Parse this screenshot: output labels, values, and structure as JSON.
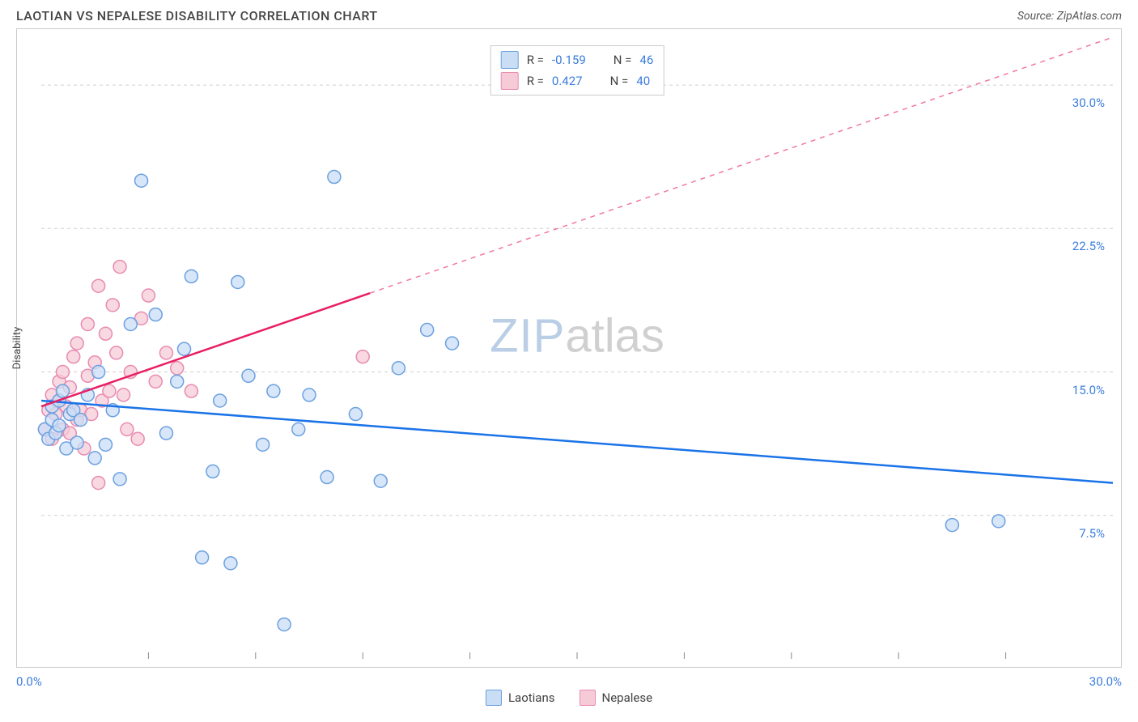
{
  "title": "LAOTIAN VS NEPALESE DISABILITY CORRELATION CHART",
  "source_label": "Source: ZipAtlas.com",
  "ylabel": "Disability",
  "xlim": [
    0,
    30
  ],
  "ylim": [
    0,
    32.5
  ],
  "ytick_positions": [
    7.5,
    15.0,
    22.5,
    30.0
  ],
  "ytick_labels": [
    "7.5%",
    "15.0%",
    "22.5%",
    "30.0%"
  ],
  "xtick_positions": [
    3,
    6,
    9,
    12,
    15,
    18,
    21,
    24,
    27
  ],
  "x_start_label": "0.0%",
  "x_end_label": "30.0%",
  "grid_color": "#d0d0d0",
  "marker_radius": 8,
  "marker_stroke_width": 1.5,
  "line_width": 2.5,
  "series": {
    "laotians": {
      "label": "Laotians",
      "fill": "#c9ddf5",
      "stroke": "#6ca0e0",
      "line_color": "#1a73e8",
      "R": "-0.159",
      "N": "46",
      "line": {
        "x1": 0,
        "y1": 13.5,
        "x2": 30,
        "y2": 9.2
      },
      "dash_from_x": null,
      "points": [
        [
          0.1,
          12.0
        ],
        [
          0.2,
          11.5
        ],
        [
          0.3,
          12.5
        ],
        [
          0.3,
          13.2
        ],
        [
          0.4,
          11.8
        ],
        [
          0.5,
          13.5
        ],
        [
          0.5,
          12.2
        ],
        [
          0.6,
          14.0
        ],
        [
          0.7,
          11.0
        ],
        [
          0.8,
          12.8
        ],
        [
          0.9,
          13.0
        ],
        [
          1.0,
          11.3
        ],
        [
          1.1,
          12.5
        ],
        [
          1.3,
          13.8
        ],
        [
          1.5,
          10.5
        ],
        [
          1.6,
          15.0
        ],
        [
          1.8,
          11.2
        ],
        [
          2.0,
          13.0
        ],
        [
          2.2,
          9.4
        ],
        [
          2.5,
          17.5
        ],
        [
          2.8,
          25.0
        ],
        [
          3.2,
          18.0
        ],
        [
          3.5,
          11.8
        ],
        [
          3.8,
          14.5
        ],
        [
          4.0,
          16.2
        ],
        [
          4.2,
          20.0
        ],
        [
          4.5,
          5.3
        ],
        [
          4.8,
          9.8
        ],
        [
          5.0,
          13.5
        ],
        [
          5.3,
          5.0
        ],
        [
          5.5,
          19.7
        ],
        [
          5.8,
          14.8
        ],
        [
          6.2,
          11.2
        ],
        [
          6.5,
          14.0
        ],
        [
          6.8,
          1.8
        ],
        [
          7.2,
          12.0
        ],
        [
          7.5,
          13.8
        ],
        [
          8.0,
          9.5
        ],
        [
          8.2,
          25.2
        ],
        [
          8.8,
          12.8
        ],
        [
          9.5,
          9.3
        ],
        [
          10.0,
          15.2
        ],
        [
          10.8,
          17.2
        ],
        [
          11.5,
          16.5
        ],
        [
          25.5,
          7.0
        ],
        [
          26.8,
          7.2
        ]
      ]
    },
    "nepalese": {
      "label": "Nepalese",
      "fill": "#f6cbd7",
      "stroke": "#e88bb0",
      "line_color": "#e91e63",
      "R": "0.427",
      "N": "40",
      "line": {
        "x1": 0,
        "y1": 13.2,
        "x2": 30,
        "y2": 32.5
      },
      "dash_from_x": 9.2,
      "points": [
        [
          0.1,
          12.0
        ],
        [
          0.2,
          13.0
        ],
        [
          0.3,
          13.8
        ],
        [
          0.3,
          11.5
        ],
        [
          0.4,
          12.8
        ],
        [
          0.5,
          13.5
        ],
        [
          0.5,
          14.5
        ],
        [
          0.6,
          12.0
        ],
        [
          0.6,
          15.0
        ],
        [
          0.7,
          13.2
        ],
        [
          0.8,
          11.8
        ],
        [
          0.8,
          14.2
        ],
        [
          0.9,
          15.8
        ],
        [
          1.0,
          12.5
        ],
        [
          1.0,
          16.5
        ],
        [
          1.1,
          13.0
        ],
        [
          1.2,
          11.0
        ],
        [
          1.3,
          14.8
        ],
        [
          1.3,
          17.5
        ],
        [
          1.4,
          12.8
        ],
        [
          1.5,
          15.5
        ],
        [
          1.6,
          19.5
        ],
        [
          1.7,
          13.5
        ],
        [
          1.8,
          17.0
        ],
        [
          1.9,
          14.0
        ],
        [
          2.0,
          18.5
        ],
        [
          2.1,
          16.0
        ],
        [
          2.2,
          20.5
        ],
        [
          2.3,
          13.8
        ],
        [
          2.5,
          15.0
        ],
        [
          2.7,
          11.5
        ],
        [
          2.8,
          17.8
        ],
        [
          3.0,
          19.0
        ],
        [
          3.2,
          14.5
        ],
        [
          3.5,
          16.0
        ],
        [
          1.6,
          9.2
        ],
        [
          2.4,
          12.0
        ],
        [
          3.8,
          15.2
        ],
        [
          4.2,
          14.0
        ],
        [
          9.0,
          15.8
        ]
      ]
    }
  },
  "watermark": {
    "part1": "ZIP",
    "part2": "atlas"
  },
  "legend_top": [
    {
      "series": "laotians"
    },
    {
      "series": "nepalese"
    }
  ]
}
